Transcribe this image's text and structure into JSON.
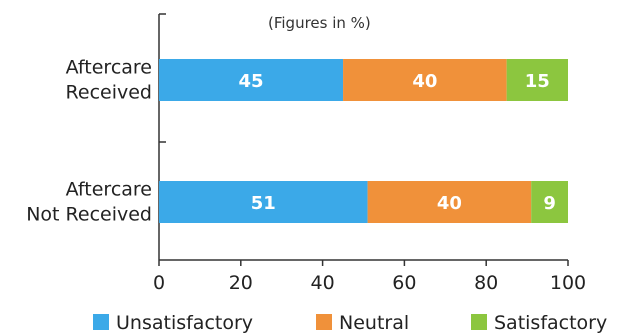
{
  "chart_data": {
    "type": "bar",
    "orientation": "horizontal",
    "stacked": true,
    "note": "(Figures in %)",
    "categories": [
      [
        "Aftercare",
        "Received"
      ],
      [
        "Aftercare",
        "Not Received"
      ]
    ],
    "series": [
      {
        "name": "Unsatisfactory",
        "color": "#3BA9E8",
        "values": [
          45,
          51
        ]
      },
      {
        "name": "Neutral",
        "color": "#F0913A",
        "values": [
          40,
          40
        ]
      },
      {
        "name": "Satisfactory",
        "color": "#8CC63F",
        "values": [
          15,
          9
        ]
      }
    ],
    "xlim": [
      0,
      100
    ],
    "xticks": [
      0,
      20,
      40,
      60,
      80,
      100
    ],
    "grid": false,
    "legend_position": "bottom"
  }
}
